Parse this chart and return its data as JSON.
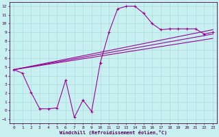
{
  "title": "",
  "xlabel": "Windchill (Refroidissement éolien,°C)",
  "background_color": "#c8f0f0",
  "grid_color": "#b0dede",
  "line_color": "#990099",
  "xlim": [
    -0.5,
    23.5
  ],
  "ylim": [
    -1.5,
    12.5
  ],
  "xticks": [
    0,
    1,
    2,
    3,
    4,
    5,
    6,
    7,
    8,
    9,
    10,
    11,
    12,
    13,
    14,
    15,
    16,
    17,
    18,
    19,
    20,
    21,
    22,
    23
  ],
  "yticks": [
    -1,
    0,
    1,
    2,
    3,
    4,
    5,
    6,
    7,
    8,
    9,
    10,
    11,
    12
  ],
  "curve_x": [
    0,
    1,
    2,
    3,
    4,
    5,
    6,
    7,
    8,
    9,
    10,
    11,
    12,
    13,
    14,
    15,
    16,
    17,
    18,
    19,
    20,
    21,
    22,
    23
  ],
  "curve_y": [
    4.7,
    4.3,
    2.1,
    0.2,
    0.2,
    0.3,
    3.5,
    -0.8,
    1.2,
    -0.1,
    5.5,
    9.0,
    11.7,
    12.0,
    12.0,
    11.2,
    10.0,
    9.3,
    9.4,
    9.4,
    9.4,
    9.4,
    8.8,
    9.0
  ],
  "line1_x": [
    0,
    23
  ],
  "line1_y": [
    4.7,
    9.3
  ],
  "line2_x": [
    0,
    23
  ],
  "line2_y": [
    4.7,
    8.8
  ],
  "line3_x": [
    0,
    23
  ],
  "line3_y": [
    4.7,
    8.3
  ]
}
